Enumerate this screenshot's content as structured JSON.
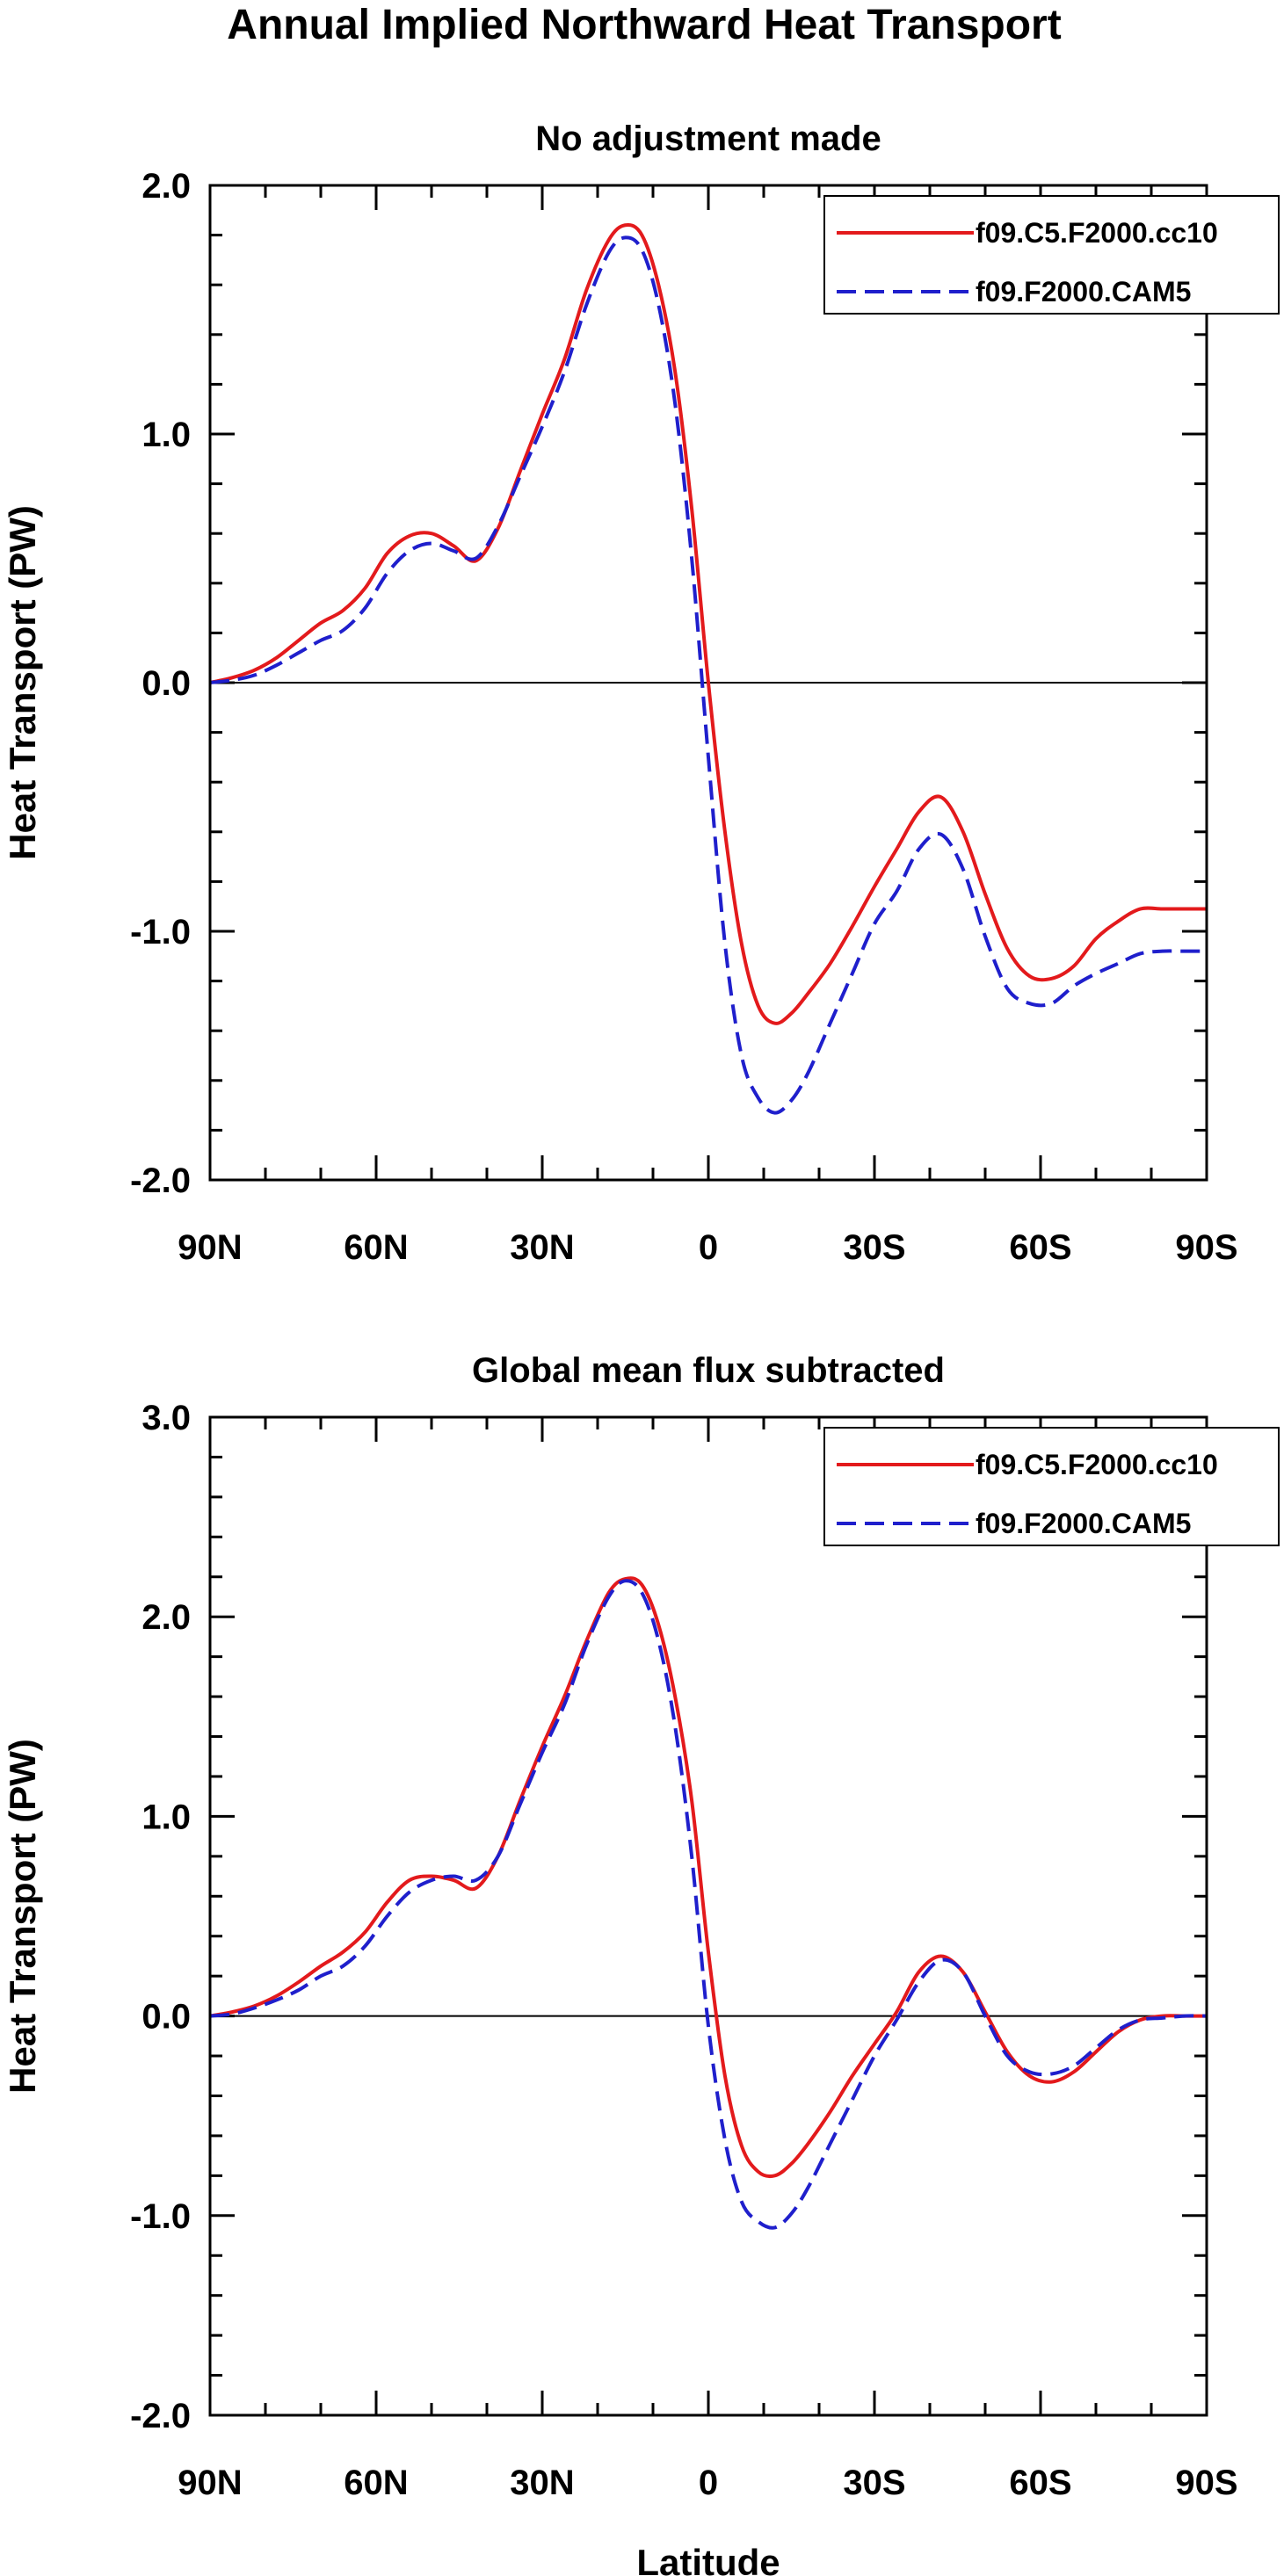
{
  "figure": {
    "title": "Annual Implied Northward Heat Transport"
  },
  "chart_data": [
    {
      "type": "line",
      "title": "No adjustment made",
      "xlabel": "",
      "ylabel": "Heat Transport (PW)",
      "xlim": [
        90,
        -90
      ],
      "ylim": [
        -2.0,
        2.0
      ],
      "yticks": [
        2.0,
        1.0,
        0.0,
        -1.0,
        -2.0
      ],
      "ytick_labels": [
        "2.0",
        "1.0",
        "0.0",
        "-1.0",
        "-2.0"
      ],
      "xticks": [
        90,
        60,
        30,
        0,
        -30,
        -60,
        -90
      ],
      "xtick_labels": [
        "90N",
        "60N",
        "30N",
        "0",
        "30S",
        "60S",
        "90S"
      ],
      "legend": "top-right",
      "grid": false,
      "zero_line": true,
      "series": [
        {
          "name": "f09.C5.F2000.cc10",
          "color": "#e31a1c",
          "dash": "solid",
          "x": [
            90,
            86,
            82,
            78,
            74,
            70,
            66,
            62,
            58,
            54,
            50,
            46,
            42,
            38,
            34,
            30,
            26,
            22,
            18,
            15,
            12,
            9,
            6,
            3,
            0,
            -3,
            -6,
            -9,
            -12,
            -15,
            -18,
            -22,
            -26,
            -30,
            -34,
            -38,
            -42,
            -46,
            -50,
            -54,
            -58,
            -62,
            -66,
            -70,
            -74,
            -78,
            -82,
            -86,
            -90
          ],
          "y": [
            0.0,
            0.02,
            0.05,
            0.1,
            0.17,
            0.24,
            0.29,
            0.38,
            0.52,
            0.59,
            0.6,
            0.55,
            0.49,
            0.62,
            0.85,
            1.08,
            1.3,
            1.58,
            1.78,
            1.84,
            1.8,
            1.6,
            1.25,
            0.7,
            0.0,
            -0.6,
            -1.05,
            -1.3,
            -1.37,
            -1.33,
            -1.25,
            -1.13,
            -0.98,
            -0.82,
            -0.67,
            -0.52,
            -0.46,
            -0.6,
            -0.85,
            -1.07,
            -1.18,
            -1.19,
            -1.14,
            -1.03,
            -0.96,
            -0.91,
            -0.91,
            -0.91,
            -0.91
          ]
        },
        {
          "name": "f09.F2000.CAM5",
          "color": "#1f1fcc",
          "dash": "dashed",
          "x": [
            90,
            86,
            82,
            78,
            74,
            70,
            66,
            62,
            58,
            54,
            50,
            46,
            42,
            38,
            34,
            30,
            26,
            22,
            18,
            15,
            12,
            9,
            6,
            3,
            0,
            -3,
            -6,
            -9,
            -12,
            -15,
            -18,
            -22,
            -26,
            -30,
            -34,
            -38,
            -42,
            -46,
            -50,
            -54,
            -58,
            -62,
            -66,
            -70,
            -74,
            -78,
            -82,
            -86,
            -90
          ],
          "y": [
            0.0,
            0.01,
            0.03,
            0.07,
            0.12,
            0.17,
            0.21,
            0.3,
            0.44,
            0.53,
            0.56,
            0.53,
            0.5,
            0.63,
            0.83,
            1.03,
            1.25,
            1.52,
            1.73,
            1.79,
            1.74,
            1.52,
            1.12,
            0.5,
            -0.3,
            -1.05,
            -1.5,
            -1.67,
            -1.73,
            -1.68,
            -1.57,
            -1.37,
            -1.17,
            -0.97,
            -0.84,
            -0.67,
            -0.61,
            -0.75,
            -1.02,
            -1.23,
            -1.29,
            -1.29,
            -1.22,
            -1.17,
            -1.13,
            -1.09,
            -1.08,
            -1.08,
            -1.08
          ]
        }
      ]
    },
    {
      "type": "line",
      "title": "Global mean flux subtracted",
      "xlabel": "Latitude",
      "ylabel": "Heat Transport (PW)",
      "xlim": [
        90,
        -90
      ],
      "ylim": [
        -2.0,
        3.0
      ],
      "yticks": [
        3.0,
        2.0,
        1.0,
        0.0,
        -1.0,
        -2.0
      ],
      "ytick_labels": [
        "3.0",
        "2.0",
        "1.0",
        "0.0",
        "-1.0",
        "-2.0"
      ],
      "xticks": [
        90,
        60,
        30,
        0,
        -30,
        -60,
        -90
      ],
      "xtick_labels": [
        "90N",
        "60N",
        "30N",
        "0",
        "30S",
        "60S",
        "90S"
      ],
      "legend": "top-right",
      "grid": false,
      "zero_line": true,
      "series": [
        {
          "name": "f09.C5.F2000.cc10",
          "color": "#e31a1c",
          "dash": "solid",
          "x": [
            90,
            86,
            82,
            78,
            74,
            70,
            66,
            62,
            58,
            54,
            50,
            46,
            42,
            38,
            34,
            30,
            26,
            22,
            18,
            15,
            12,
            9,
            6,
            3,
            0,
            -3,
            -6,
            -9,
            -12,
            -15,
            -18,
            -22,
            -26,
            -30,
            -34,
            -38,
            -42,
            -46,
            -50,
            -54,
            -58,
            -62,
            -66,
            -70,
            -74,
            -78,
            -82,
            -86,
            -90
          ],
          "y": [
            0.0,
            0.02,
            0.05,
            0.1,
            0.17,
            0.25,
            0.32,
            0.42,
            0.57,
            0.68,
            0.7,
            0.68,
            0.64,
            0.8,
            1.08,
            1.35,
            1.6,
            1.88,
            2.12,
            2.19,
            2.16,
            1.96,
            1.6,
            1.08,
            0.32,
            -0.3,
            -0.65,
            -0.78,
            -0.8,
            -0.74,
            -0.64,
            -0.48,
            -0.3,
            -0.14,
            0.02,
            0.22,
            0.3,
            0.22,
            0.02,
            -0.18,
            -0.3,
            -0.33,
            -0.28,
            -0.18,
            -0.08,
            -0.02,
            0.0,
            0.0,
            0.0
          ]
        },
        {
          "name": "f09.F2000.CAM5",
          "color": "#1f1fcc",
          "dash": "dashed",
          "x": [
            90,
            86,
            82,
            78,
            74,
            70,
            66,
            62,
            58,
            54,
            50,
            46,
            42,
            38,
            34,
            30,
            26,
            22,
            18,
            15,
            12,
            9,
            6,
            3,
            0,
            -3,
            -6,
            -9,
            -12,
            -15,
            -18,
            -22,
            -26,
            -30,
            -34,
            -38,
            -42,
            -46,
            -50,
            -54,
            -58,
            -62,
            -66,
            -70,
            -74,
            -78,
            -82,
            -86,
            -90
          ],
          "y": [
            0.0,
            0.01,
            0.04,
            0.08,
            0.13,
            0.2,
            0.25,
            0.35,
            0.5,
            0.62,
            0.68,
            0.7,
            0.68,
            0.8,
            1.06,
            1.32,
            1.56,
            1.86,
            2.1,
            2.18,
            2.12,
            1.88,
            1.45,
            0.8,
            -0.05,
            -0.62,
            -0.93,
            -1.03,
            -1.06,
            -0.99,
            -0.86,
            -0.64,
            -0.42,
            -0.2,
            -0.02,
            0.17,
            0.28,
            0.22,
            0.0,
            -0.2,
            -0.28,
            -0.29,
            -0.25,
            -0.16,
            -0.07,
            -0.02,
            -0.01,
            0.0,
            0.0
          ]
        }
      ]
    }
  ]
}
